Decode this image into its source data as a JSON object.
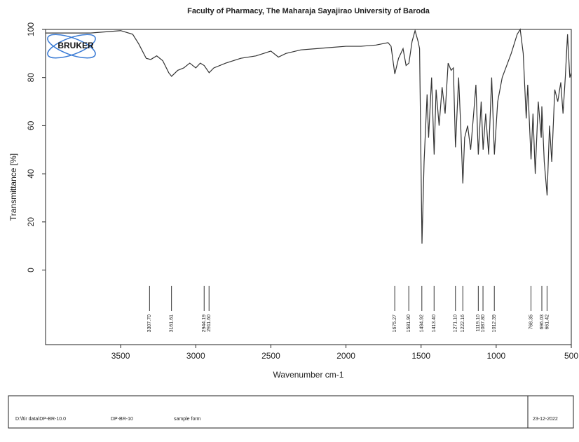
{
  "chart_data": {
    "type": "line",
    "title": "Faculty of Pharmacy, The Maharaja Sayajirao University of Baroda",
    "x_label": "Wavenumber cm-1",
    "y_label": "Transmittance [%]",
    "logo": "BRUKER",
    "xlim": [
      4000,
      500
    ],
    "xticks": [
      3500,
      3000,
      2500,
      2000,
      1500,
      1000,
      500
    ],
    "ylim": [
      -31,
      100
    ],
    "yticks": [
      0,
      20,
      40,
      60,
      80,
      100
    ],
    "series": [
      {
        "color": "#333333",
        "x": [
          4000,
          3900,
          3700,
          3500,
          3420,
          3380,
          3330,
          3300,
          3260,
          3220,
          3180,
          3161,
          3120,
          3080,
          3040,
          3000,
          2970,
          2944,
          2911,
          2880,
          2800,
          2700,
          2600,
          2500,
          2450,
          2400,
          2300,
          2200,
          2100,
          2000,
          1900,
          1800,
          1720,
          1700,
          1675,
          1650,
          1620,
          1600,
          1581,
          1560,
          1540,
          1520,
          1510,
          1494,
          1480,
          1460,
          1450,
          1430,
          1413,
          1400,
          1380,
          1360,
          1340,
          1320,
          1300,
          1285,
          1271,
          1250,
          1235,
          1222,
          1210,
          1190,
          1170,
          1150,
          1135,
          1119,
          1100,
          1087,
          1070,
          1050,
          1030,
          1012,
          990,
          960,
          930,
          900,
          860,
          840,
          820,
          800,
          790,
          768,
          755,
          740,
          720,
          700,
          696,
          680,
          661,
          645,
          630,
          610,
          590,
          570,
          555,
          540,
          525,
          510,
          500
        ],
        "values": [
          98.5,
          98.5,
          98.5,
          99.5,
          98,
          94,
          88,
          87.5,
          89,
          87,
          82,
          80.5,
          83,
          84,
          86,
          84,
          86,
          85,
          82,
          84,
          86,
          88,
          89,
          91,
          88.5,
          90,
          91.5,
          92,
          92.5,
          93,
          93,
          93.5,
          94.5,
          93,
          81.5,
          88,
          92,
          85,
          86,
          95,
          99.5,
          95,
          92,
          11,
          45,
          73,
          55,
          80,
          48,
          75,
          60,
          76,
          65,
          86,
          83,
          84,
          51,
          80,
          58,
          36,
          55,
          60,
          50,
          65,
          77,
          48,
          70,
          50,
          65,
          48,
          80,
          48,
          70,
          80,
          85,
          90,
          98,
          100,
          90,
          63,
          77,
          46,
          65,
          40,
          70,
          55,
          68,
          45,
          31,
          60,
          45,
          75,
          70,
          78,
          65,
          80,
          98,
          80,
          82
        ]
      }
    ],
    "peak_labels": [
      {
        "value": 3307.7,
        "label": "3307.70"
      },
      {
        "value": 3161.61,
        "label": "3161.61"
      },
      {
        "value": 2944.19,
        "label": "2944.19"
      },
      {
        "value": 2911.6,
        "label": "2911.60"
      },
      {
        "value": 1675.27,
        "label": "1675.27"
      },
      {
        "value": 1581.9,
        "label": "1581.90"
      },
      {
        "value": 1494.92,
        "label": "1494.92"
      },
      {
        "value": 1413.4,
        "label": "1413.40"
      },
      {
        "value": 1271.1,
        "label": "1271.10"
      },
      {
        "value": 1222.16,
        "label": "1222.16"
      },
      {
        "value": 1119.1,
        "label": "1119.10"
      },
      {
        "value": 1087.8,
        "label": "1087.80"
      },
      {
        "value": 1012.39,
        "label": "1012.39"
      },
      {
        "value": 768.35,
        "label": "768.35"
      },
      {
        "value": 696.03,
        "label": "696.03"
      },
      {
        "value": 661.42,
        "label": "661.42"
      }
    ],
    "footer": {
      "path": "D:\\ftir data\\DP-BR-10.0",
      "sample": "DP-BR-10",
      "form": "sample form",
      "date": "23-12-2022"
    }
  }
}
